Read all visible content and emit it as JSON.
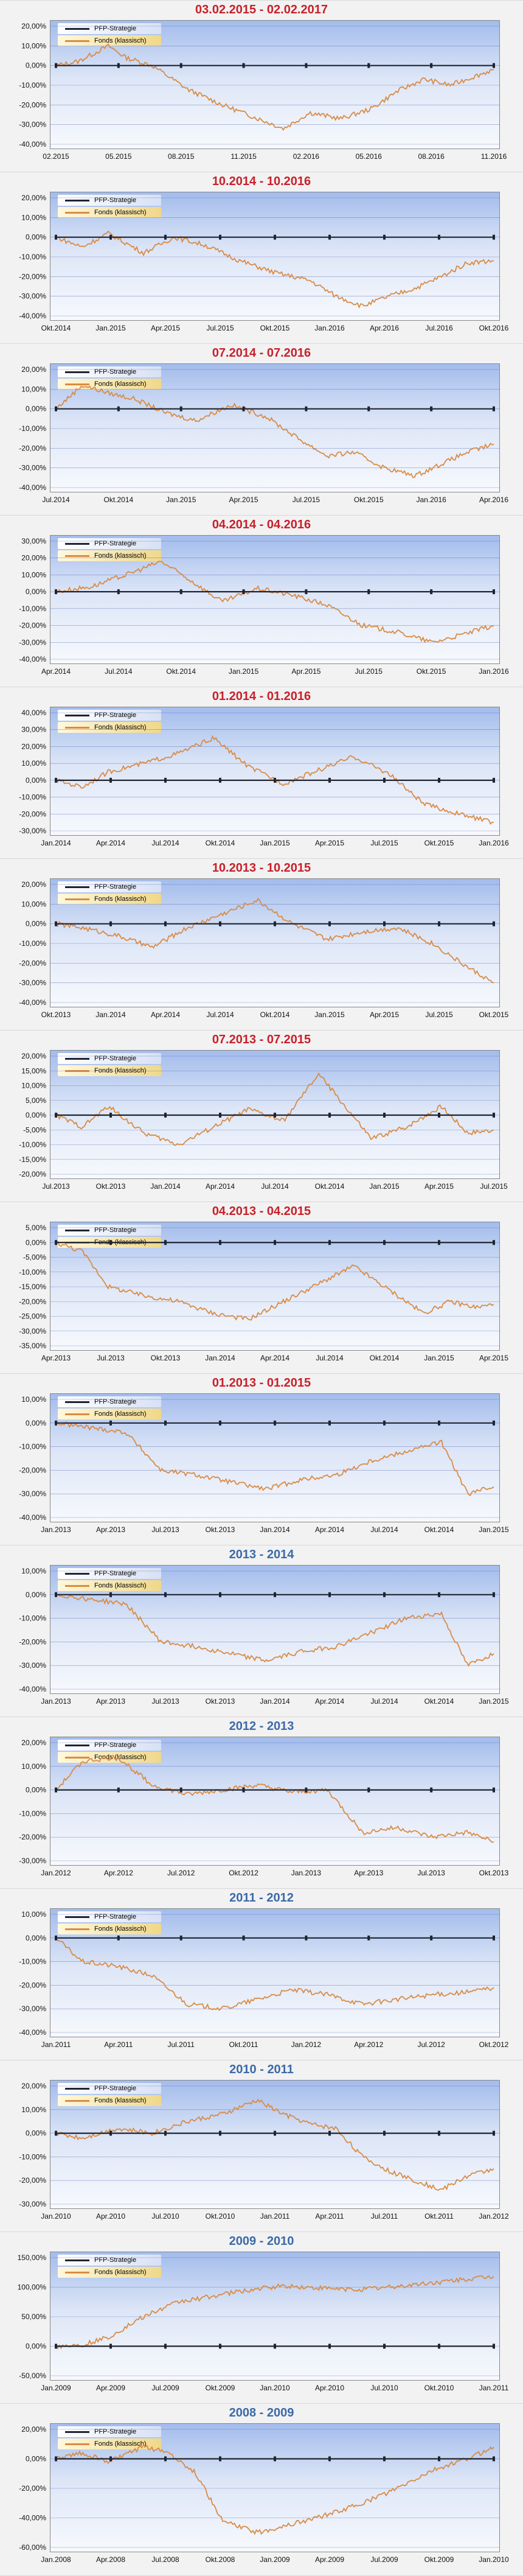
{
  "colors": {
    "strategy": "#1f2430",
    "fund": "#d98b45",
    "grid": "#3b52a8",
    "title_red": "#c8202a",
    "title_blue": "#3b6aa8"
  },
  "legend": {
    "strategy": "PFP-Strategie",
    "fund": "Fonds (klassisch)"
  },
  "chart_data": [
    {
      "type": "line",
      "title": "03.02.2015 - 02.02.2017",
      "title_color": "red",
      "yticks": [
        "20,00%",
        "10,00%",
        "0,00%",
        "-10,00%",
        "-20,00%",
        "-30,00%",
        "-40,00%"
      ],
      "ylim": [
        -40,
        20
      ],
      "xticks": [
        "02.2015",
        "05.2015",
        "08.2015",
        "11.2015",
        "02.2016",
        "05.2016",
        "08.2016",
        "11.2016"
      ],
      "series": [
        {
          "name": "PFP-Strategie",
          "x": [
            0,
            1
          ],
          "y": [
            0,
            0
          ]
        },
        {
          "name": "Fonds (klassisch)",
          "x": [
            0,
            0.05,
            0.12,
            0.16,
            0.22,
            0.3,
            0.38,
            0.45,
            0.52,
            0.58,
            0.65,
            0.72,
            0.78,
            0.84,
            0.9,
            0.95,
            1
          ],
          "y": [
            0,
            2,
            10,
            4,
            0,
            -12,
            -20,
            -26,
            -32,
            -24,
            -27,
            -22,
            -13,
            -7,
            -10,
            -6,
            -2
          ]
        }
      ]
    },
    {
      "type": "line",
      "title": "10.2014 - 10.2016",
      "title_color": "red",
      "yticks": [
        "20,00%",
        "10,00%",
        "0,00%",
        "-10,00%",
        "-20,00%",
        "-30,00%",
        "-40,00%"
      ],
      "ylim": [
        -40,
        20
      ],
      "xticks": [
        "Okt.2014",
        "Jan.2015",
        "Apr.2015",
        "Jul.2015",
        "Okt.2015",
        "Jan.2016",
        "Apr.2016",
        "Jul.2016",
        "Okt.2016"
      ],
      "series": [
        {
          "name": "PFP-Strategie",
          "x": [
            0,
            1
          ],
          "y": [
            0,
            0
          ]
        },
        {
          "name": "Fonds (klassisch)",
          "x": [
            0,
            0.06,
            0.12,
            0.2,
            0.27,
            0.34,
            0.42,
            0.5,
            0.58,
            0.64,
            0.7,
            0.76,
            0.82,
            0.88,
            0.94,
            1
          ],
          "y": [
            0,
            -5,
            2,
            -8,
            0,
            -4,
            -12,
            -18,
            -22,
            -30,
            -35,
            -30,
            -26,
            -20,
            -13,
            -12
          ]
        }
      ]
    },
    {
      "type": "line",
      "title": "07.2014 - 07.2016",
      "title_color": "red",
      "yticks": [
        "20,00%",
        "10,00%",
        "0,00%",
        "-10,00%",
        "-20,00%",
        "-30,00%",
        "-40,00%"
      ],
      "ylim": [
        -40,
        20
      ],
      "xticks": [
        "Jul.2014",
        "Okt.2014",
        "Jan.2015",
        "Apr.2015",
        "Jul.2015",
        "Okt.2015",
        "Jan.2016",
        "Apr.2016"
      ],
      "series": [
        {
          "name": "PFP-Strategie",
          "x": [
            0,
            1
          ],
          "y": [
            0,
            0
          ]
        },
        {
          "name": "Fonds (klassisch)",
          "x": [
            0,
            0.06,
            0.12,
            0.18,
            0.25,
            0.32,
            0.4,
            0.48,
            0.56,
            0.62,
            0.68,
            0.75,
            0.82,
            0.88,
            0.94,
            1
          ],
          "y": [
            0,
            12,
            8,
            5,
            -2,
            -6,
            2,
            -4,
            -16,
            -24,
            -22,
            -30,
            -34,
            -28,
            -22,
            -18
          ]
        }
      ]
    },
    {
      "type": "line",
      "title": "04.2014 - 04.2016",
      "title_color": "red",
      "yticks": [
        "30,00%",
        "20,00%",
        "10,00%",
        "0,00%",
        "-10,00%",
        "-20,00%",
        "-30,00%",
        "-40,00%"
      ],
      "ylim": [
        -40,
        30
      ],
      "xticks": [
        "Apr.2014",
        "Jul.2014",
        "Okt.2014",
        "Jan.2015",
        "Apr.2015",
        "Jul.2015",
        "Okt.2015",
        "Jan.2016"
      ],
      "series": [
        {
          "name": "PFP-Strategie",
          "x": [
            0,
            1
          ],
          "y": [
            0,
            0
          ]
        },
        {
          "name": "Fonds (klassisch)",
          "x": [
            0,
            0.08,
            0.16,
            0.24,
            0.3,
            0.38,
            0.46,
            0.54,
            0.62,
            0.7,
            0.78,
            0.86,
            0.92,
            1
          ],
          "y": [
            0,
            3,
            10,
            18,
            8,
            -6,
            2,
            -2,
            -8,
            -20,
            -24,
            -30,
            -26,
            -20
          ]
        }
      ]
    },
    {
      "type": "line",
      "title": "01.2014 - 01.2016",
      "title_color": "red",
      "yticks": [
        "40,00%",
        "30,00%",
        "20,00%",
        "10,00%",
        "0,00%",
        "-10,00%",
        "-20,00%",
        "-30,00%"
      ],
      "ylim": [
        -30,
        40
      ],
      "xticks": [
        "Jan.2014",
        "Apr.2014",
        "Jul.2014",
        "Okt.2014",
        "Jan.2015",
        "Apr.2015",
        "Jul.2015",
        "Okt.2015",
        "Jan.2016"
      ],
      "series": [
        {
          "name": "PFP-Strategie",
          "x": [
            0,
            1
          ],
          "y": [
            0,
            0
          ]
        },
        {
          "name": "Fonds (klassisch)",
          "x": [
            0,
            0.06,
            0.12,
            0.2,
            0.28,
            0.36,
            0.44,
            0.52,
            0.6,
            0.68,
            0.76,
            0.84,
            0.92,
            1
          ],
          "y": [
            0,
            -4,
            5,
            10,
            16,
            25,
            8,
            -2,
            6,
            14,
            4,
            -14,
            -20,
            -25
          ]
        }
      ]
    },
    {
      "type": "line",
      "title": "10.2013 - 10.2015",
      "title_color": "red",
      "yticks": [
        "20,00%",
        "10,00%",
        "0,00%",
        "-10,00%",
        "-20,00%",
        "-30,00%",
        "-40,00%"
      ],
      "ylim": [
        -40,
        20
      ],
      "xticks": [
        "Okt.2013",
        "Jan.2014",
        "Apr.2014",
        "Jul.2014",
        "Okt.2014",
        "Jan.2015",
        "Apr.2015",
        "Jul.2015",
        "Okt.2015"
      ],
      "series": [
        {
          "name": "PFP-Strategie",
          "x": [
            0,
            1
          ],
          "y": [
            0,
            0
          ]
        },
        {
          "name": "Fonds (klassisch)",
          "x": [
            0,
            0.06,
            0.14,
            0.22,
            0.3,
            0.38,
            0.46,
            0.54,
            0.62,
            0.7,
            0.78,
            0.86,
            0.94,
            1
          ],
          "y": [
            0,
            -2,
            -6,
            -12,
            -2,
            5,
            12,
            0,
            -8,
            -4,
            -2,
            -10,
            -22,
            -30
          ]
        }
      ]
    },
    {
      "type": "line",
      "title": "07.2013 - 07.2015",
      "title_color": "red",
      "yticks": [
        "20,00%",
        "15,00%",
        "10,00%",
        "5,00%",
        "0,00%",
        "-5,00%",
        "-10,00%",
        "-15,00%",
        "-20,00%"
      ],
      "ylim": [
        -20,
        20
      ],
      "xticks": [
        "Jul.2013",
        "Okt.2013",
        "Jan.2014",
        "Apr.2014",
        "Jul.2014",
        "Okt.2014",
        "Jan.2015",
        "Apr.2015",
        "Jul.2015"
      ],
      "series": [
        {
          "name": "PFP-Strategie",
          "x": [
            0,
            1
          ],
          "y": [
            0,
            0
          ]
        },
        {
          "name": "Fonds (klassisch)",
          "x": [
            0,
            0.06,
            0.12,
            0.2,
            0.28,
            0.36,
            0.44,
            0.52,
            0.6,
            0.66,
            0.72,
            0.8,
            0.88,
            0.94,
            1
          ],
          "y": [
            0,
            -4,
            3,
            -6,
            -10,
            -4,
            2,
            -2,
            14,
            3,
            -8,
            -4,
            3,
            -6,
            -5
          ]
        }
      ]
    },
    {
      "type": "line",
      "title": "04.2013 - 04.2015",
      "title_color": "red",
      "yticks": [
        "5,00%",
        "0,00%",
        "-5,00%",
        "-10,00%",
        "-15,00%",
        "-20,00%",
        "-25,00%",
        "-30,00%",
        "-35,00%"
      ],
      "ylim": [
        -35,
        5
      ],
      "xticks": [
        "Apr.2013",
        "Jul.2013",
        "Okt.2013",
        "Jan.2014",
        "Apr.2014",
        "Jul.2014",
        "Okt.2014",
        "Jan.2015",
        "Apr.2015"
      ],
      "series": [
        {
          "name": "PFP-Strategie",
          "x": [
            0,
            1
          ],
          "y": [
            0,
            0
          ]
        },
        {
          "name": "Fonds (klassisch)",
          "x": [
            0,
            0.06,
            0.12,
            0.2,
            0.28,
            0.36,
            0.44,
            0.52,
            0.6,
            0.68,
            0.76,
            0.84,
            0.9,
            0.96,
            1
          ],
          "y": [
            0,
            -3,
            -15,
            -18,
            -20,
            -24,
            -26,
            -20,
            -14,
            -8,
            -16,
            -24,
            -20,
            -22,
            -21
          ]
        }
      ]
    },
    {
      "type": "line",
      "title": "01.2013 - 01.2015",
      "title_color": "red",
      "yticks": [
        "10,00%",
        "0,00%",
        "-10,00%",
        "-20,00%",
        "-30,00%",
        "-40,00%"
      ],
      "ylim": [
        -40,
        10
      ],
      "xticks": [
        "Jan.2013",
        "Apr.2013",
        "Jul.2013",
        "Okt.2013",
        "Jan.2014",
        "Apr.2014",
        "Jul.2014",
        "Okt.2014",
        "Jan.2015"
      ],
      "series": [
        {
          "name": "PFP-Strategie",
          "x": [
            0,
            1
          ],
          "y": [
            0,
            0
          ]
        },
        {
          "name": "Fonds (klassisch)",
          "x": [
            0,
            0.08,
            0.16,
            0.24,
            0.32,
            0.4,
            0.48,
            0.56,
            0.64,
            0.72,
            0.8,
            0.88,
            0.94,
            1
          ],
          "y": [
            0,
            -2,
            -4,
            -20,
            -22,
            -25,
            -28,
            -24,
            -22,
            -16,
            -12,
            -8,
            -30,
            -27
          ]
        }
      ]
    },
    {
      "type": "line",
      "title": "2013 - 2014",
      "title_color": "blue",
      "yticks": [
        "10,00%",
        "0,00%",
        "-10,00%",
        "-20,00%",
        "-30,00%",
        "-40,00%"
      ],
      "ylim": [
        -40,
        10
      ],
      "xticks": [
        "Jan.2013",
        "Apr.2013",
        "Jul.2013",
        "Okt.2013",
        "Jan.2014",
        "Apr.2014",
        "Jul.2014",
        "Okt.2014",
        "Jan.2015"
      ],
      "series": [
        {
          "name": "PFP-Strategie",
          "x": [
            0,
            1
          ],
          "y": [
            0,
            0
          ]
        },
        {
          "name": "Fonds (klassisch)",
          "x": [
            0,
            0.08,
            0.16,
            0.24,
            0.32,
            0.4,
            0.48,
            0.56,
            0.64,
            0.72,
            0.8,
            0.88,
            0.94,
            1
          ],
          "y": [
            0,
            -2,
            -4,
            -20,
            -22,
            -25,
            -28,
            -24,
            -22,
            -16,
            -10,
            -8,
            -30,
            -25
          ]
        }
      ]
    },
    {
      "type": "line",
      "title": "2012 - 2013",
      "title_color": "blue",
      "yticks": [
        "20,00%",
        "10,00%",
        "0,00%",
        "-10,00%",
        "-20,00%",
        "-30,00%"
      ],
      "ylim": [
        -30,
        20
      ],
      "xticks": [
        "Jan.2012",
        "Apr.2012",
        "Jul.2012",
        "Okt.2012",
        "Jan.2013",
        "Apr.2013",
        "Jul.2013",
        "Okt.2013"
      ],
      "series": [
        {
          "name": "PFP-Strategie",
          "x": [
            0,
            1
          ],
          "y": [
            0,
            0
          ]
        },
        {
          "name": "Fonds (klassisch)",
          "x": [
            0,
            0.06,
            0.14,
            0.22,
            0.3,
            0.38,
            0.46,
            0.54,
            0.62,
            0.7,
            0.78,
            0.86,
            0.94,
            1
          ],
          "y": [
            0,
            12,
            14,
            2,
            -2,
            0,
            2,
            -1,
            0,
            -18,
            -16,
            -20,
            -18,
            -22
          ]
        }
      ]
    },
    {
      "type": "line",
      "title": "2011 - 2012",
      "title_color": "blue",
      "yticks": [
        "10,00%",
        "0,00%",
        "-10,00%",
        "-20,00%",
        "-30,00%",
        "-40,00%"
      ],
      "ylim": [
        -40,
        10
      ],
      "xticks": [
        "Jan.2011",
        "Apr.2011",
        "Jul.2011",
        "Okt.2011",
        "Jan.2012",
        "Apr.2012",
        "Jul.2012",
        "Okt.2012"
      ],
      "series": [
        {
          "name": "PFP-Strategie",
          "x": [
            0,
            1
          ],
          "y": [
            0,
            0
          ]
        },
        {
          "name": "Fonds (klassisch)",
          "x": [
            0,
            0.06,
            0.14,
            0.22,
            0.3,
            0.38,
            0.46,
            0.54,
            0.62,
            0.7,
            0.78,
            0.86,
            0.94,
            1
          ],
          "y": [
            0,
            -10,
            -12,
            -16,
            -28,
            -30,
            -26,
            -22,
            -24,
            -28,
            -26,
            -24,
            -23,
            -21
          ]
        }
      ]
    },
    {
      "type": "line",
      "title": "2010 - 2011",
      "title_color": "blue",
      "yticks": [
        "20,00%",
        "10,00%",
        "0,00%",
        "-10,00%",
        "-20,00%",
        "-30,00%"
      ],
      "ylim": [
        -30,
        20
      ],
      "xticks": [
        "Jan.2010",
        "Apr.2010",
        "Jul.2010",
        "Okt.2010",
        "Jan.2011",
        "Apr.2011",
        "Jul.2011",
        "Okt.2011",
        "Jan.2012"
      ],
      "series": [
        {
          "name": "PFP-Strategie",
          "x": [
            0,
            1
          ],
          "y": [
            0,
            0
          ]
        },
        {
          "name": "Fonds (klassisch)",
          "x": [
            0,
            0.06,
            0.14,
            0.22,
            0.3,
            0.38,
            0.46,
            0.52,
            0.58,
            0.64,
            0.7,
            0.76,
            0.82,
            0.88,
            0.94,
            1
          ],
          "y": [
            0,
            -2,
            2,
            0,
            5,
            8,
            14,
            8,
            4,
            2,
            -10,
            -16,
            -20,
            -24,
            -18,
            -15
          ]
        }
      ]
    },
    {
      "type": "line",
      "title": "2009 - 2010",
      "title_color": "blue",
      "yticks": [
        "150,00%",
        "100,00%",
        "50,00%",
        "0,00%",
        "-50,00%"
      ],
      "ylim": [
        -50,
        150
      ],
      "xticks": [
        "Jan.2009",
        "Apr.2009",
        "Jul.2009",
        "Okt.2009",
        "Jan.2010",
        "Apr.2010",
        "Jul.2010",
        "Okt.2010",
        "Jan.2011"
      ],
      "series": [
        {
          "name": "PFP-Strategie",
          "x": [
            0,
            1
          ],
          "y": [
            0,
            0
          ]
        },
        {
          "name": "Fonds (klassisch)",
          "x": [
            0,
            0.06,
            0.12,
            0.2,
            0.28,
            0.36,
            0.44,
            0.52,
            0.6,
            0.68,
            0.76,
            0.84,
            0.92,
            1
          ],
          "y": [
            0,
            2,
            15,
            50,
            75,
            85,
            95,
            102,
            98,
            96,
            100,
            106,
            112,
            118
          ]
        }
      ]
    },
    {
      "type": "line",
      "title": "2008 - 2009",
      "title_color": "blue",
      "yticks": [
        "20,00%",
        "0,00%",
        "-20,00%",
        "-40,00%",
        "-60,00%"
      ],
      "ylim": [
        -60,
        20
      ],
      "xticks": [
        "Jan.2008",
        "Apr.2008",
        "Jul.2008",
        "Okt.2008",
        "Jan.2009",
        "Apr.2009",
        "Jul.2009",
        "Okt.2009",
        "Jan.2010"
      ],
      "series": [
        {
          "name": "PFP-Strategie",
          "x": [
            0,
            1
          ],
          "y": [
            0,
            0
          ]
        },
        {
          "name": "Fonds (klassisch)",
          "x": [
            0,
            0.06,
            0.12,
            0.2,
            0.26,
            0.32,
            0.38,
            0.46,
            0.54,
            0.62,
            0.7,
            0.78,
            0.86,
            0.94,
            1
          ],
          "y": [
            0,
            4,
            -2,
            8,
            4,
            -10,
            -42,
            -50,
            -44,
            -38,
            -30,
            -20,
            -8,
            0,
            8
          ]
        }
      ]
    }
  ]
}
